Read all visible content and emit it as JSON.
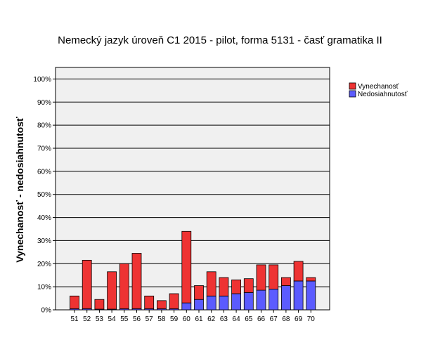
{
  "chart_data": {
    "type": "bar",
    "stacked": true,
    "title": "Nemecký jazyk úroveň C1 2015 - pilot, forma 5131 - časť gramatika II",
    "xlabel": "",
    "ylabel": "Vynechanosť - nedosiahnutosť",
    "ylim": [
      0,
      105
    ],
    "yticks": [
      "0%",
      "10%",
      "20%",
      "30%",
      "40%",
      "50%",
      "60%",
      "70%",
      "80%",
      "90%",
      "100%"
    ],
    "grid": true,
    "legend_position": "top-right",
    "categories": [
      "51",
      "52",
      "53",
      "54",
      "55",
      "56",
      "57",
      "58",
      "59",
      "60",
      "61",
      "62",
      "63",
      "64",
      "65",
      "66",
      "67",
      "68",
      "69",
      "70"
    ],
    "series": [
      {
        "name": "Nedosiahnutosť",
        "color": "#5b5bff",
        "values": [
          0.5,
          0.5,
          0.3,
          0.3,
          0.5,
          0.5,
          0.5,
          0.5,
          0.5,
          3,
          4.5,
          6,
          6,
          7,
          7.5,
          8.5,
          9,
          10.5,
          12.5,
          12.5
        ]
      },
      {
        "name": "Vynechanosť",
        "color": "#ee3333",
        "values": [
          5.5,
          21,
          4.2,
          16.2,
          19.5,
          24,
          5.5,
          3.5,
          6.5,
          31,
          6,
          10.5,
          8,
          6,
          6,
          11,
          10.5,
          3.5,
          8.5,
          1.5
        ]
      }
    ],
    "legend": [
      "Vynechanosť",
      "Nedosiahnutosť"
    ]
  },
  "colors": {
    "plot_background": "#f0f0f0",
    "gridline": "#000000"
  }
}
